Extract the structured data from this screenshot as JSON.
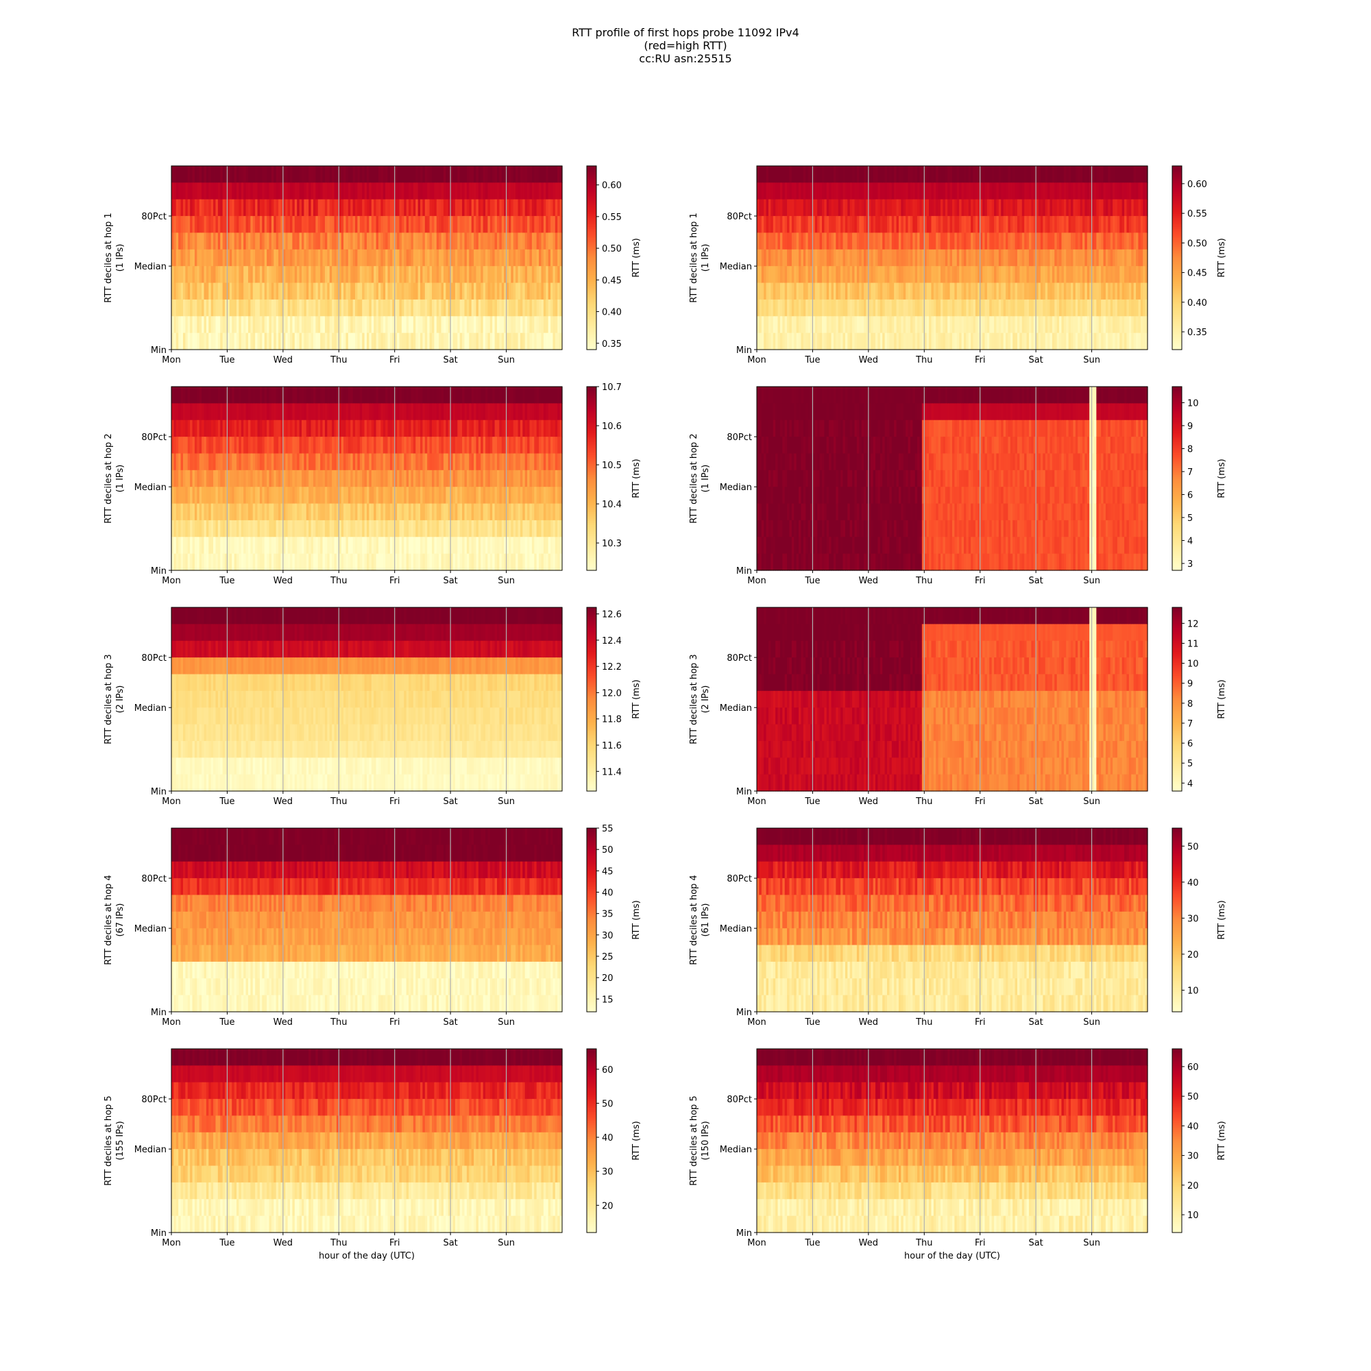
{
  "figure": {
    "title_lines": [
      "RTT profile of first hops probe 11092 IPv4",
      "(red=high RTT)",
      "cc:RU asn:25515"
    ]
  },
  "chart_data": [
    {
      "type": "heatmap",
      "panel": "hop1-left",
      "ylabel": [
        "RTT deciles at hop 1",
        "(1 IPs)"
      ],
      "yticks": [
        "80Pct",
        "Median",
        "Min"
      ],
      "xticks": [
        "Mon",
        "Tue",
        "Wed",
        "Thu",
        "Fri",
        "Sat",
        "Sun"
      ],
      "xlabel": "",
      "colorbar": {
        "label": "RTT (ms)",
        "range": [
          0.34,
          0.63
        ],
        "ticks": [
          0.35,
          0.4,
          0.45,
          0.5,
          0.55,
          0.6
        ],
        "decimals": 2
      },
      "pattern": "gradient",
      "deciles": [
        0.36,
        0.4,
        0.43,
        0.45,
        0.47,
        0.49,
        0.52,
        0.55,
        0.59,
        0.63
      ],
      "noise": 0.025
    },
    {
      "type": "heatmap",
      "panel": "hop1-right",
      "ylabel": [
        "RTT deciles at hop 1",
        "(1 IPs)"
      ],
      "yticks": [
        "80Pct",
        "Median",
        "Min"
      ],
      "xticks": [
        "Mon",
        "Tue",
        "Wed",
        "Thu",
        "Fri",
        "Sat",
        "Sun"
      ],
      "xlabel": "",
      "colorbar": {
        "label": "RTT (ms)",
        "range": [
          0.32,
          0.63
        ],
        "ticks": [
          0.35,
          0.4,
          0.45,
          0.5,
          0.55,
          0.6
        ],
        "decimals": 2
      },
      "pattern": "gradient",
      "deciles": [
        0.35,
        0.39,
        0.42,
        0.45,
        0.47,
        0.5,
        0.53,
        0.56,
        0.59,
        0.63
      ],
      "noise": 0.02
    },
    {
      "type": "heatmap",
      "panel": "hop2-left",
      "ylabel": [
        "RTT deciles at hop 2",
        "(1 IPs)"
      ],
      "yticks": [
        "80Pct",
        "Median",
        "Min"
      ],
      "xticks": [
        "Mon",
        "Tue",
        "Wed",
        "Thu",
        "Fri",
        "Sat",
        "Sun"
      ],
      "xlabel": "",
      "colorbar": {
        "label": "RTT (ms)",
        "range": [
          10.23,
          10.7
        ],
        "ticks": [
          10.3,
          10.4,
          10.5,
          10.6,
          10.7
        ],
        "decimals": 1
      },
      "pattern": "gradient",
      "deciles": [
        10.25,
        10.32,
        10.37,
        10.41,
        10.45,
        10.49,
        10.53,
        10.58,
        10.63,
        10.7
      ],
      "noise": 0.03
    },
    {
      "type": "heatmap",
      "panel": "hop2-right",
      "ylabel": [
        "RTT deciles at hop 2",
        "(1 IPs)"
      ],
      "yticks": [
        "80Pct",
        "Median",
        "Min"
      ],
      "xticks": [
        "Mon",
        "Tue",
        "Wed",
        "Thu",
        "Fri",
        "Sat",
        "Sun"
      ],
      "xlabel": "",
      "colorbar": {
        "label": "RTT (ms)",
        "range": [
          2.7,
          10.7
        ],
        "ticks": [
          3,
          4,
          5,
          6,
          7,
          8,
          9,
          10
        ],
        "decimals": 0
      },
      "pattern": "shift",
      "shift_day": 3,
      "before": [
        10.7,
        10.7,
        10.7,
        10.7,
        10.7,
        10.7,
        10.7,
        10.7,
        10.7,
        10.7
      ],
      "after": [
        7.7,
        7.7,
        7.7,
        7.7,
        7.7,
        7.7,
        7.7,
        7.7,
        9.5,
        10.7
      ],
      "noise": 0.3
    },
    {
      "type": "heatmap",
      "panel": "hop3-left",
      "ylabel": [
        "RTT deciles at hop 3",
        "(2 IPs)"
      ],
      "yticks": [
        "80Pct",
        "Median",
        "Min"
      ],
      "xticks": [
        "Mon",
        "Tue",
        "Wed",
        "Thu",
        "Fri",
        "Sat",
        "Sun"
      ],
      "xlabel": "",
      "colorbar": {
        "label": "RTT (ms)",
        "range": [
          11.25,
          12.65
        ],
        "ticks": [
          11.4,
          11.6,
          11.8,
          12.0,
          12.2,
          12.4,
          12.6
        ],
        "decimals": 1
      },
      "pattern": "gradient",
      "deciles": [
        11.3,
        11.45,
        11.5,
        11.53,
        11.56,
        11.6,
        11.9,
        12.4,
        12.55,
        12.65
      ],
      "noise": 0.05
    },
    {
      "type": "heatmap",
      "panel": "hop3-right",
      "ylabel": [
        "RTT deciles at hop 3",
        "(2 IPs)"
      ],
      "yticks": [
        "80Pct",
        "Median",
        "Min"
      ],
      "xticks": [
        "Mon",
        "Tue",
        "Wed",
        "Thu",
        "Fri",
        "Sat",
        "Sun"
      ],
      "xlabel": "",
      "colorbar": {
        "label": "RTT (ms)",
        "range": [
          3.6,
          12.8
        ],
        "ticks": [
          4,
          5,
          6,
          7,
          8,
          9,
          10,
          11,
          12
        ],
        "decimals": 0
      },
      "pattern": "shift",
      "shift_day": 3,
      "before": [
        11.2,
        11.2,
        11.2,
        11.2,
        11.2,
        12.8,
        12.8,
        12.8,
        12.8,
        12.8
      ],
      "after": [
        8.3,
        8.3,
        8.3,
        8.3,
        8.3,
        9.2,
        9.2,
        9.2,
        9.2,
        12.8
      ],
      "noise": 0.4
    },
    {
      "type": "heatmap",
      "panel": "hop4-left",
      "ylabel": [
        "RTT deciles at hop 4",
        "(67 IPs)"
      ],
      "yticks": [
        "80Pct",
        "Median",
        "Min"
      ],
      "xticks": [
        "Mon",
        "Tue",
        "Wed",
        "Thu",
        "Fri",
        "Sat",
        "Sun"
      ],
      "xlabel": "",
      "colorbar": {
        "label": "RTT (ms)",
        "range": [
          12,
          55
        ],
        "ticks": [
          15,
          20,
          25,
          30,
          35,
          40,
          45,
          50,
          55
        ],
        "decimals": 0
      },
      "pattern": "gradient",
      "deciles": [
        14,
        14,
        29,
        31,
        32,
        34,
        42,
        47,
        55,
        55
      ],
      "noise": 2.5
    },
    {
      "type": "heatmap",
      "panel": "hop4-right",
      "ylabel": [
        "RTT deciles at hop 4",
        "(61 IPs)"
      ],
      "yticks": [
        "80Pct",
        "Median",
        "Min"
      ],
      "xticks": [
        "Mon",
        "Tue",
        "Wed",
        "Thu",
        "Fri",
        "Sat",
        "Sun"
      ],
      "xlabel": "",
      "colorbar": {
        "label": "RTT (ms)",
        "range": [
          4,
          55
        ],
        "ticks": [
          10,
          20,
          30,
          40,
          50
        ],
        "decimals": 0
      },
      "pattern": "gradient",
      "deciles": [
        11,
        11,
        16,
        28,
        30,
        33,
        37,
        43,
        50,
        55
      ],
      "noise": 4
    },
    {
      "type": "heatmap",
      "panel": "hop5-left",
      "ylabel": [
        "RTT deciles at hop 5",
        "(155 IPs)"
      ],
      "yticks": [
        "80Pct",
        "Median",
        "Min"
      ],
      "xticks": [
        "Mon",
        "Tue",
        "Wed",
        "Thu",
        "Fri",
        "Sat",
        "Sun"
      ],
      "xlabel": "hour of the day (UTC)",
      "colorbar": {
        "label": "RTT (ms)",
        "range": [
          12,
          66
        ],
        "ticks": [
          20,
          30,
          40,
          50,
          60
        ],
        "decimals": 0
      },
      "pattern": "gradient",
      "deciles": [
        15,
        20,
        26,
        29,
        34,
        41,
        46,
        51,
        57,
        66
      ],
      "noise": 4
    },
    {
      "type": "heatmap",
      "panel": "hop5-right",
      "ylabel": [
        "RTT deciles at hop 5",
        "(150 IPs)"
      ],
      "yticks": [
        "80Pct",
        "Median",
        "Min"
      ],
      "xticks": [
        "Mon",
        "Tue",
        "Wed",
        "Thu",
        "Fri",
        "Sat",
        "Sun"
      ],
      "xlabel": "hour of the day (UTC)",
      "colorbar": {
        "label": "RTT (ms)",
        "range": [
          4,
          66
        ],
        "ticks": [
          10,
          20,
          30,
          40,
          50,
          60
        ],
        "decimals": 0
      },
      "pattern": "gradient",
      "deciles": [
        10,
        17,
        24,
        30,
        35,
        42,
        48,
        54,
        60,
        66
      ],
      "noise": 5
    }
  ]
}
